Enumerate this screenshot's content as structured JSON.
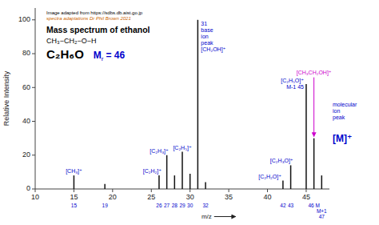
{
  "chart_data": {
    "type": "bar",
    "title": "Mass spectrum of ethanol",
    "credits": [
      {
        "text": "Image adapted from https://sdbs.db.aist.go.jp",
        "color": "#000000"
      },
      {
        "text": "spectra adaptations Dr Phil Brown 2021",
        "color": "#cc6600"
      }
    ],
    "formula": "CH₃−CH₂−O−H",
    "molecular_formula": "C₂H₆O",
    "relative_mass": {
      "parts": [
        "M",
        "r",
        "= 46"
      ],
      "color": "#0000cc"
    },
    "x": [
      15,
      19,
      26,
      27,
      28,
      29,
      30,
      31,
      32,
      42,
      43,
      45,
      46,
      47
    ],
    "values": [
      8,
      3,
      8,
      20,
      8,
      22,
      9,
      100,
      4,
      5,
      14,
      62,
      30,
      8
    ],
    "color": "#111111",
    "xlim": [
      10,
      48
    ],
    "xticks": [
      10,
      15,
      20,
      25,
      30,
      35,
      40,
      45
    ],
    "ylim": [
      0,
      107
    ],
    "yticks": [
      0,
      20,
      40,
      60,
      80,
      100
    ],
    "xlabel": "m/z",
    "ylabel": "Relative Intensity",
    "grid": false,
    "peak_labels": [
      {
        "x": 15,
        "label": "15",
        "color": "#0000cc"
      },
      {
        "x": 19,
        "label": "19",
        "color": "#0000cc"
      },
      {
        "x": 26,
        "label": "26",
        "color": "#0000cc"
      },
      {
        "x": 27,
        "label": "27",
        "color": "#0000cc"
      },
      {
        "x": 28,
        "label": "28",
        "color": "#0000cc"
      },
      {
        "x": 29,
        "label": "29",
        "color": "#0000cc"
      },
      {
        "x": 30,
        "label": "30",
        "color": "#0000cc"
      },
      {
        "x": 32,
        "label": "32",
        "color": "#0000cc"
      },
      {
        "x": 42,
        "label": "42",
        "color": "#0000cc"
      },
      {
        "x": 43,
        "label": "43",
        "color": "#0000cc"
      },
      {
        "x": 46,
        "label": "46 M",
        "color": "#0000cc"
      },
      {
        "x": 47,
        "label": "M+1\n47",
        "color": "#0000cc"
      }
    ],
    "annotations": [
      {
        "x": 15,
        "text": "[CH₃]⁺",
        "color": "#0000cc"
      },
      {
        "x": 26,
        "text": "[C₂H₂]⁺",
        "color": "#0000cc"
      },
      {
        "x": 27,
        "text": "[C₂H₃]⁺",
        "color": "#0000cc"
      },
      {
        "x": 29,
        "text": "[C₂H₅]⁺",
        "color": "#0000cc"
      },
      {
        "x": 31,
        "text": "31\nbase\nion\npeak\n[CH₂OH]⁺",
        "color": "#0000cc"
      },
      {
        "x": 45,
        "text": "[C₂H₅O]⁺\nM-1 45",
        "color": "#0000cc"
      },
      {
        "x": 46,
        "text": "[CH₃CH₂OH]⁺",
        "color": "#cc00cc"
      },
      {
        "x": 43,
        "text": "[C₂H₃O]⁺",
        "color": "#0000cc"
      },
      {
        "x": 42,
        "text": "[C₂H₂O]⁺",
        "color": "#0000cc"
      },
      {
        "x": 46,
        "text": "molecular\nion\npeak",
        "color": "#0000cc"
      },
      {
        "x": 46,
        "text": "[M]⁺",
        "color": "#0000cc"
      }
    ]
  }
}
